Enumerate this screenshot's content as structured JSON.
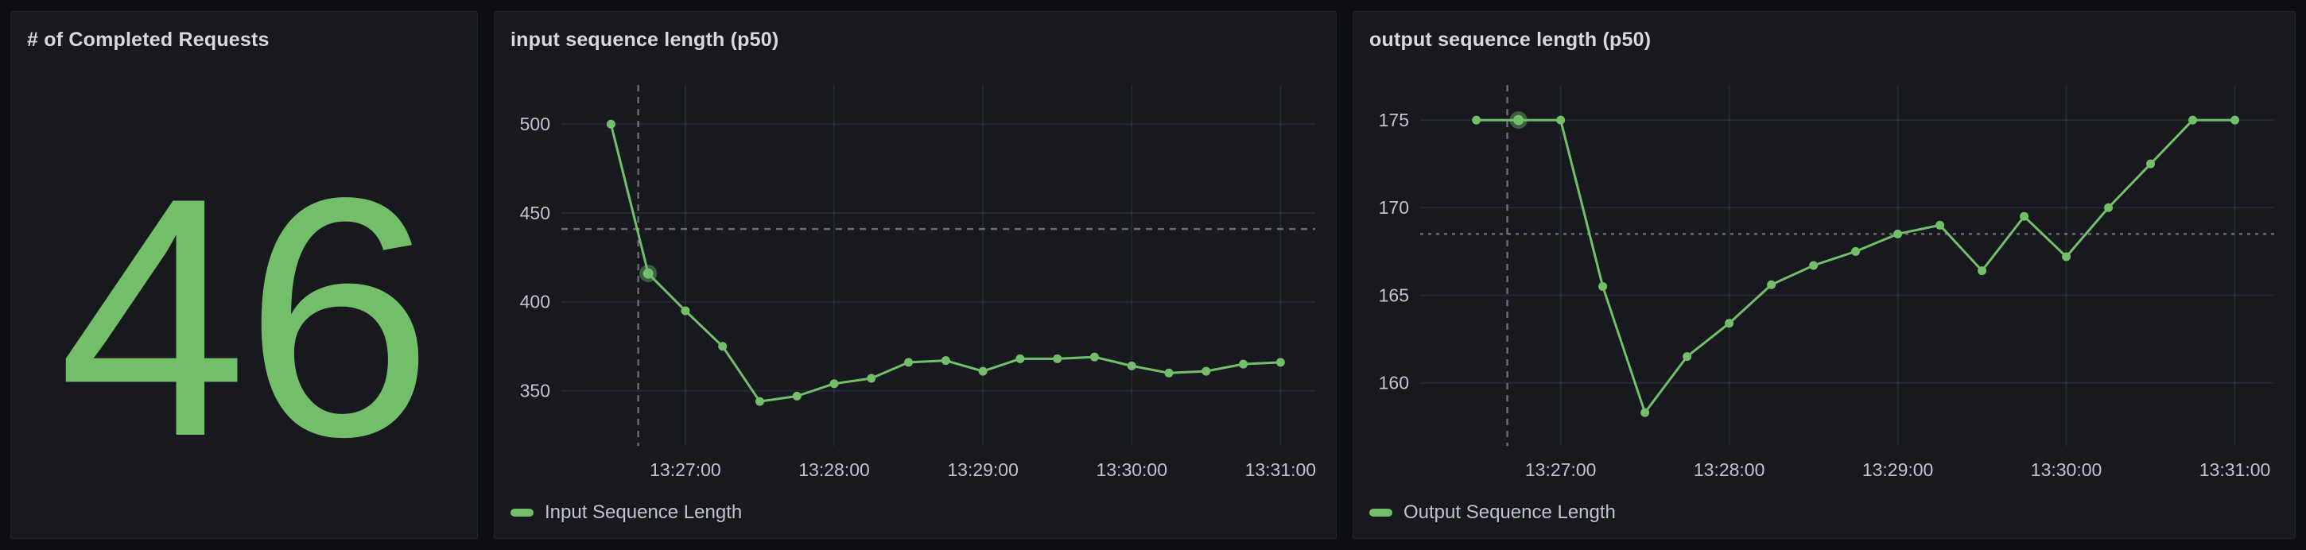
{
  "page": {
    "background": "#0e0f13",
    "panel_background": "#17191f",
    "panel_border": "#24262d",
    "accent_green": "#73BF69",
    "grid_color": "rgba(204,204,220,0.09)",
    "tick_text_color": "#c2c3cc",
    "title_text_color": "#d8d9df",
    "crosshair_color": "rgba(204,204,220,0.45)"
  },
  "stat": {
    "title": "# of Completed Requests",
    "value": "46",
    "color": "#73BF69"
  },
  "chart_data": [
    {
      "type": "line",
      "panel_title": "input sequence length (p50)",
      "x": [
        "13:26:30",
        "13:26:45",
        "13:27:00",
        "13:27:15",
        "13:27:30",
        "13:27:45",
        "13:28:00",
        "13:28:15",
        "13:28:30",
        "13:28:45",
        "13:29:00",
        "13:29:15",
        "13:29:30",
        "13:29:45",
        "13:30:00",
        "13:30:15",
        "13:30:30",
        "13:30:45",
        "13:31:00"
      ],
      "series": [
        {
          "name": "Input Sequence Length",
          "color": "#73BF69",
          "values": [
            500,
            416,
            395,
            375,
            344,
            347,
            354,
            357,
            366,
            367,
            361,
            368,
            368,
            369,
            364,
            360,
            361,
            365,
            366
          ]
        }
      ],
      "x_domain": [
        "13:26:10",
        "13:31:14"
      ],
      "x_ticks": [
        "13:27:00",
        "13:28:00",
        "13:29:00",
        "13:30:00",
        "13:31:00"
      ],
      "ylim": [
        319,
        522
      ],
      "y_ticks": [
        350,
        400,
        450,
        500
      ],
      "grid": true,
      "legend_position": "bottom",
      "hover": {
        "index": 1,
        "crosshair_time": "13:26:41",
        "crosshair_value": 441,
        "h_dash": "8 7"
      }
    },
    {
      "type": "line",
      "panel_title": "output sequence length (p50)",
      "x": [
        "13:26:30",
        "13:26:45",
        "13:27:00",
        "13:27:15",
        "13:27:30",
        "13:27:45",
        "13:28:00",
        "13:28:15",
        "13:28:30",
        "13:28:45",
        "13:29:00",
        "13:29:15",
        "13:29:30",
        "13:29:45",
        "13:30:00",
        "13:30:15",
        "13:30:30",
        "13:30:45",
        "13:31:00"
      ],
      "series": [
        {
          "name": "Output Sequence Length",
          "color": "#73BF69",
          "values": [
            175,
            175,
            175,
            165.5,
            158.3,
            161.5,
            163.4,
            165.6,
            166.7,
            167.5,
            168.5,
            169,
            166.4,
            169.5,
            167.2,
            170,
            172.5,
            175,
            175
          ]
        }
      ],
      "x_domain": [
        "13:26:10",
        "13:31:14"
      ],
      "x_ticks": [
        "13:27:00",
        "13:28:00",
        "13:29:00",
        "13:30:00",
        "13:31:00"
      ],
      "ylim": [
        156.4,
        177.0
      ],
      "y_ticks": [
        160,
        165,
        170,
        175
      ],
      "grid": true,
      "legend_position": "bottom",
      "hover": {
        "index": 1,
        "crosshair_time": "13:26:41",
        "crosshair_value": 168.5,
        "h_dash": "4 6"
      }
    }
  ]
}
